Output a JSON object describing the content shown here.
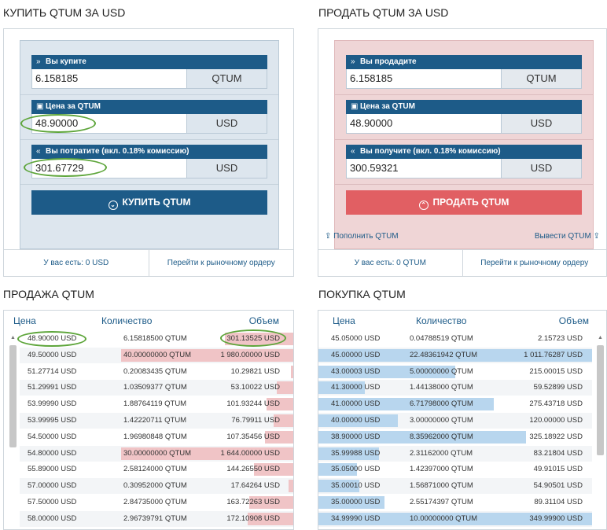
{
  "buy_panel": {
    "title": "КУПИТЬ QTUM ЗА USD",
    "fields": [
      {
        "label": "Вы купите",
        "value": "6.158185",
        "currency": "QTUM",
        "icon": "double-chevron-right-icon"
      },
      {
        "label": "Цена за QTUM",
        "value": "48.90000",
        "currency": "USD",
        "icon": "price-tag-icon"
      },
      {
        "label": "Вы потратите (вкл. 0.18% комиссию)",
        "value": "301.67729",
        "currency": "USD",
        "icon": "double-chevron-left-icon"
      }
    ],
    "button": "КУПИТЬ QTUM",
    "balance": "У вас есть: 0 USD",
    "market_link": "Перейти к рыночному ордеру"
  },
  "sell_panel": {
    "title": "ПРОДАТЬ QTUM ЗА USD",
    "fields": [
      {
        "label": "Вы продадите",
        "value": "6.158185",
        "currency": "QTUM",
        "icon": "double-chevron-right-icon"
      },
      {
        "label": "Цена за QTUM",
        "value": "48.90000",
        "currency": "USD",
        "icon": "price-tag-icon"
      },
      {
        "label": "Вы получите (вкл. 0.18% комиссию)",
        "value": "300.59321",
        "currency": "USD",
        "icon": "double-chevron-left-icon"
      }
    ],
    "button": "ПРОДАТЬ QTUM",
    "deposit_link": "Пополнить QTUM",
    "withdraw_link": "Вывести QTUM",
    "balance": "У вас есть: 0 QTUM",
    "market_link": "Перейти к рыночному ордеру"
  },
  "sell_book": {
    "title": "ПРОДАЖА QTUM",
    "headers": {
      "price": "Цена",
      "amount": "Количество",
      "volume": "Объем"
    },
    "rows": [
      {
        "price": "48.90000 USD",
        "amount": "6.15818500 QTUM",
        "volume": "301.13525 USD",
        "fill": 0.4
      },
      {
        "price": "49.50000 USD",
        "amount": "40.00000000 QTUM",
        "volume": "1 980.00000 USD",
        "fill": 1.0
      },
      {
        "price": "51.27714 USD",
        "amount": "0.20083435 QTUM",
        "volume": "10.29821 USD",
        "fill": 0.02
      },
      {
        "price": "51.29991 USD",
        "amount": "1.03509377 QTUM",
        "volume": "53.10022 USD",
        "fill": 0.1
      },
      {
        "price": "53.99990 USD",
        "amount": "1.88764119 QTUM",
        "volume": "101.93244 USD",
        "fill": 0.16
      },
      {
        "price": "53.99995 USD",
        "amount": "1.42220711 QTUM",
        "volume": "76.79911 USD",
        "fill": 0.12
      },
      {
        "price": "54.50000 USD",
        "amount": "1.96980848 QTUM",
        "volume": "107.35456 USD",
        "fill": 0.17
      },
      {
        "price": "54.80000 USD",
        "amount": "30.00000000 QTUM",
        "volume": "1 644.00000 USD",
        "fill": 1.0
      },
      {
        "price": "55.89000 USD",
        "amount": "2.58124000 QTUM",
        "volume": "144.26550 USD",
        "fill": 0.23
      },
      {
        "price": "57.00000 USD",
        "amount": "0.30952000 QTUM",
        "volume": "17.64264 USD",
        "fill": 0.03
      },
      {
        "price": "57.50000 USD",
        "amount": "2.84735000 QTUM",
        "volume": "163.72263 USD",
        "fill": 0.26
      },
      {
        "price": "58.00000 USD",
        "amount": "2.96739791 QTUM",
        "volume": "172.10908 USD",
        "fill": 0.27
      }
    ]
  },
  "buy_book": {
    "title": "ПОКУПКА QTUM",
    "headers": {
      "price": "Цена",
      "amount": "Количество",
      "volume": "Объем"
    },
    "rows": [
      {
        "price": "45.05000 USD",
        "amount": "0.04788519 QTUM",
        "volume": "2.15723 USD",
        "fill": 0.0
      },
      {
        "price": "45.00000 USD",
        "amount": "22.48361942 QTUM",
        "volume": "1 011.76287 USD",
        "fill": 1.0
      },
      {
        "price": "43.00003 USD",
        "amount": "5.00000000 QTUM",
        "volume": "215.00015 USD",
        "fill": 0.5
      },
      {
        "price": "41.30000 USD",
        "amount": "1.44138000 QTUM",
        "volume": "59.52899 USD",
        "fill": 0.17
      },
      {
        "price": "41.00000 USD",
        "amount": "6.71798000 QTUM",
        "volume": "275.43718 USD",
        "fill": 0.64
      },
      {
        "price": "40.00000 USD",
        "amount": "3.00000000 QTUM",
        "volume": "120.00000 USD",
        "fill": 0.29
      },
      {
        "price": "38.90000 USD",
        "amount": "8.35962000 QTUM",
        "volume": "325.18922 USD",
        "fill": 0.76
      },
      {
        "price": "35.99988 USD",
        "amount": "2.31162000 QTUM",
        "volume": "83.21804 USD",
        "fill": 0.22
      },
      {
        "price": "35.05000 USD",
        "amount": "1.42397000 QTUM",
        "volume": "49.91015 USD",
        "fill": 0.14
      },
      {
        "price": "35.00010 USD",
        "amount": "1.56871000 QTUM",
        "volume": "54.90501 USD",
        "fill": 0.15
      },
      {
        "price": "35.00000 USD",
        "amount": "2.55174397 QTUM",
        "volume": "89.31104 USD",
        "fill": 0.24
      },
      {
        "price": "34.99990 USD",
        "amount": "10.00000000 QTUM",
        "volume": "349.99900 USD",
        "fill": 1.0
      }
    ]
  }
}
